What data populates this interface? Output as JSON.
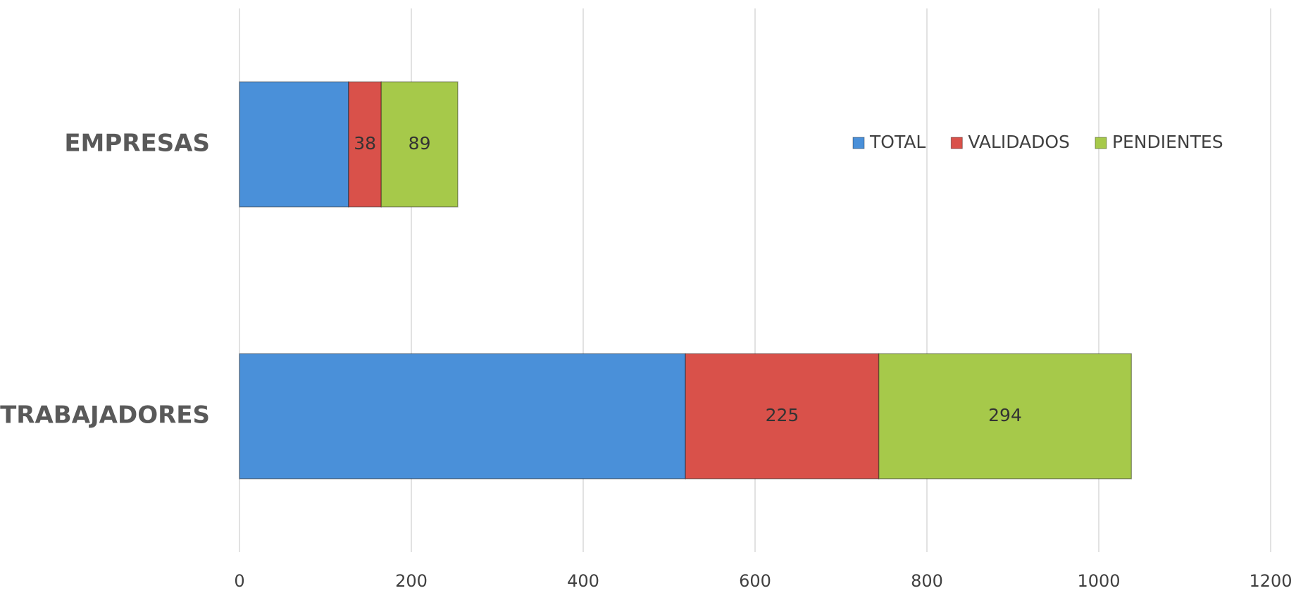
{
  "chart_data": {
    "type": "stacked-bar-horizontal",
    "categories": [
      "EMPRESAS",
      "TRABAJADORES"
    ],
    "series": [
      {
        "name": "TOTAL",
        "color": "#4a90d9",
        "values": [
          127,
          519
        ],
        "show_labels": false
      },
      {
        "name": "VALIDADOS",
        "color": "#d9514a",
        "values": [
          38,
          225
        ],
        "show_labels": true
      },
      {
        "name": "PENDIENTES",
        "color": "#a6c94a",
        "values": [
          89,
          294
        ],
        "show_labels": true
      }
    ],
    "xlim": [
      0,
      1200
    ],
    "xticks": [
      0,
      200,
      400,
      600,
      800,
      1000,
      1200
    ],
    "grid": true,
    "legend": "top-right"
  }
}
